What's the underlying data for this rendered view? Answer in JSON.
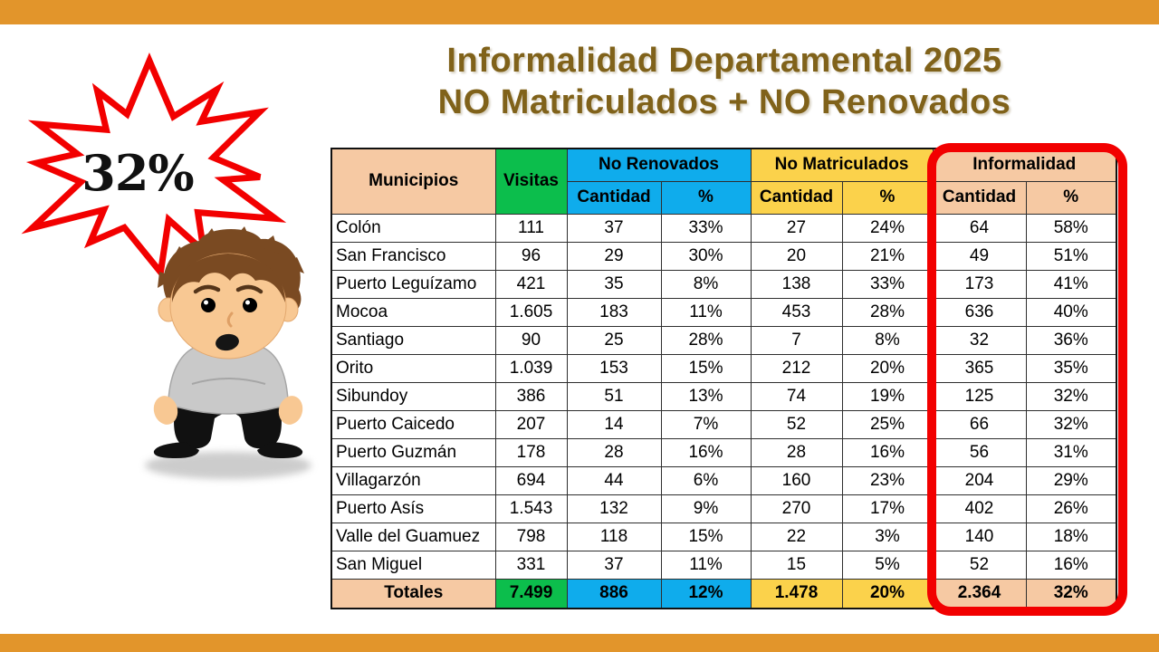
{
  "colors": {
    "accent": "#E2952B",
    "title": "#80621A",
    "salmon": "#F6C9A3",
    "green": "#0CBE4C",
    "blue": "#0FACEC",
    "yellow": "#FBD24B",
    "red": "#F20000"
  },
  "title": {
    "line1": "Informalidad Departamental 2025",
    "line2": "NO Matriculados + NO Renovados"
  },
  "burst": {
    "value": "32%",
    "icon": "red-starburst-explosion"
  },
  "illustration": "worried-cartoon-boy",
  "table": {
    "header": {
      "municipios": "Municipios",
      "visitas": "Visitas",
      "groups": [
        {
          "label": "No Renovados"
        },
        {
          "label": "No Matriculados"
        },
        {
          "label": "Informalidad"
        }
      ],
      "sub": [
        "Cantidad",
        "%"
      ]
    },
    "rows": [
      {
        "municipio": "Colón",
        "values": [
          "111",
          "37",
          "33%",
          "27",
          "24%",
          "64",
          "58%"
        ]
      },
      {
        "municipio": "San Francisco",
        "values": [
          "96",
          "29",
          "30%",
          "20",
          "21%",
          "49",
          "51%"
        ]
      },
      {
        "municipio": "Puerto Leguízamo",
        "values": [
          "421",
          "35",
          "8%",
          "138",
          "33%",
          "173",
          "41%"
        ]
      },
      {
        "municipio": "Mocoa",
        "values": [
          "1.605",
          "183",
          "11%",
          "453",
          "28%",
          "636",
          "40%"
        ]
      },
      {
        "municipio": "Santiago",
        "values": [
          "90",
          "25",
          "28%",
          "7",
          "8%",
          "32",
          "36%"
        ]
      },
      {
        "municipio": "Orito",
        "values": [
          "1.039",
          "153",
          "15%",
          "212",
          "20%",
          "365",
          "35%"
        ]
      },
      {
        "municipio": "Sibundoy",
        "values": [
          "386",
          "51",
          "13%",
          "74",
          "19%",
          "125",
          "32%"
        ]
      },
      {
        "municipio": "Puerto Caicedo",
        "values": [
          "207",
          "14",
          "7%",
          "52",
          "25%",
          "66",
          "32%"
        ]
      },
      {
        "municipio": "Puerto Guzmán",
        "values": [
          "178",
          "28",
          "16%",
          "28",
          "16%",
          "56",
          "31%"
        ]
      },
      {
        "municipio": "Villagarzón",
        "values": [
          "694",
          "44",
          "6%",
          "160",
          "23%",
          "204",
          "29%"
        ]
      },
      {
        "municipio": "Puerto Asís",
        "values": [
          "1.543",
          "132",
          "9%",
          "270",
          "17%",
          "402",
          "26%"
        ]
      },
      {
        "municipio": "Valle del Guamuez",
        "values": [
          "798",
          "118",
          "15%",
          "22",
          "3%",
          "140",
          "18%"
        ]
      },
      {
        "municipio": "San Miguel",
        "values": [
          "331",
          "37",
          "11%",
          "15",
          "5%",
          "52",
          "16%"
        ]
      }
    ],
    "totals": {
      "label": "Totales",
      "visitas": "7.499",
      "nr_cantidad": "886",
      "nr_pct": "12%",
      "nm_cantidad": "1.478",
      "nm_pct": "20%",
      "inf_cantidad": "2.364",
      "inf_pct": "32%"
    }
  }
}
